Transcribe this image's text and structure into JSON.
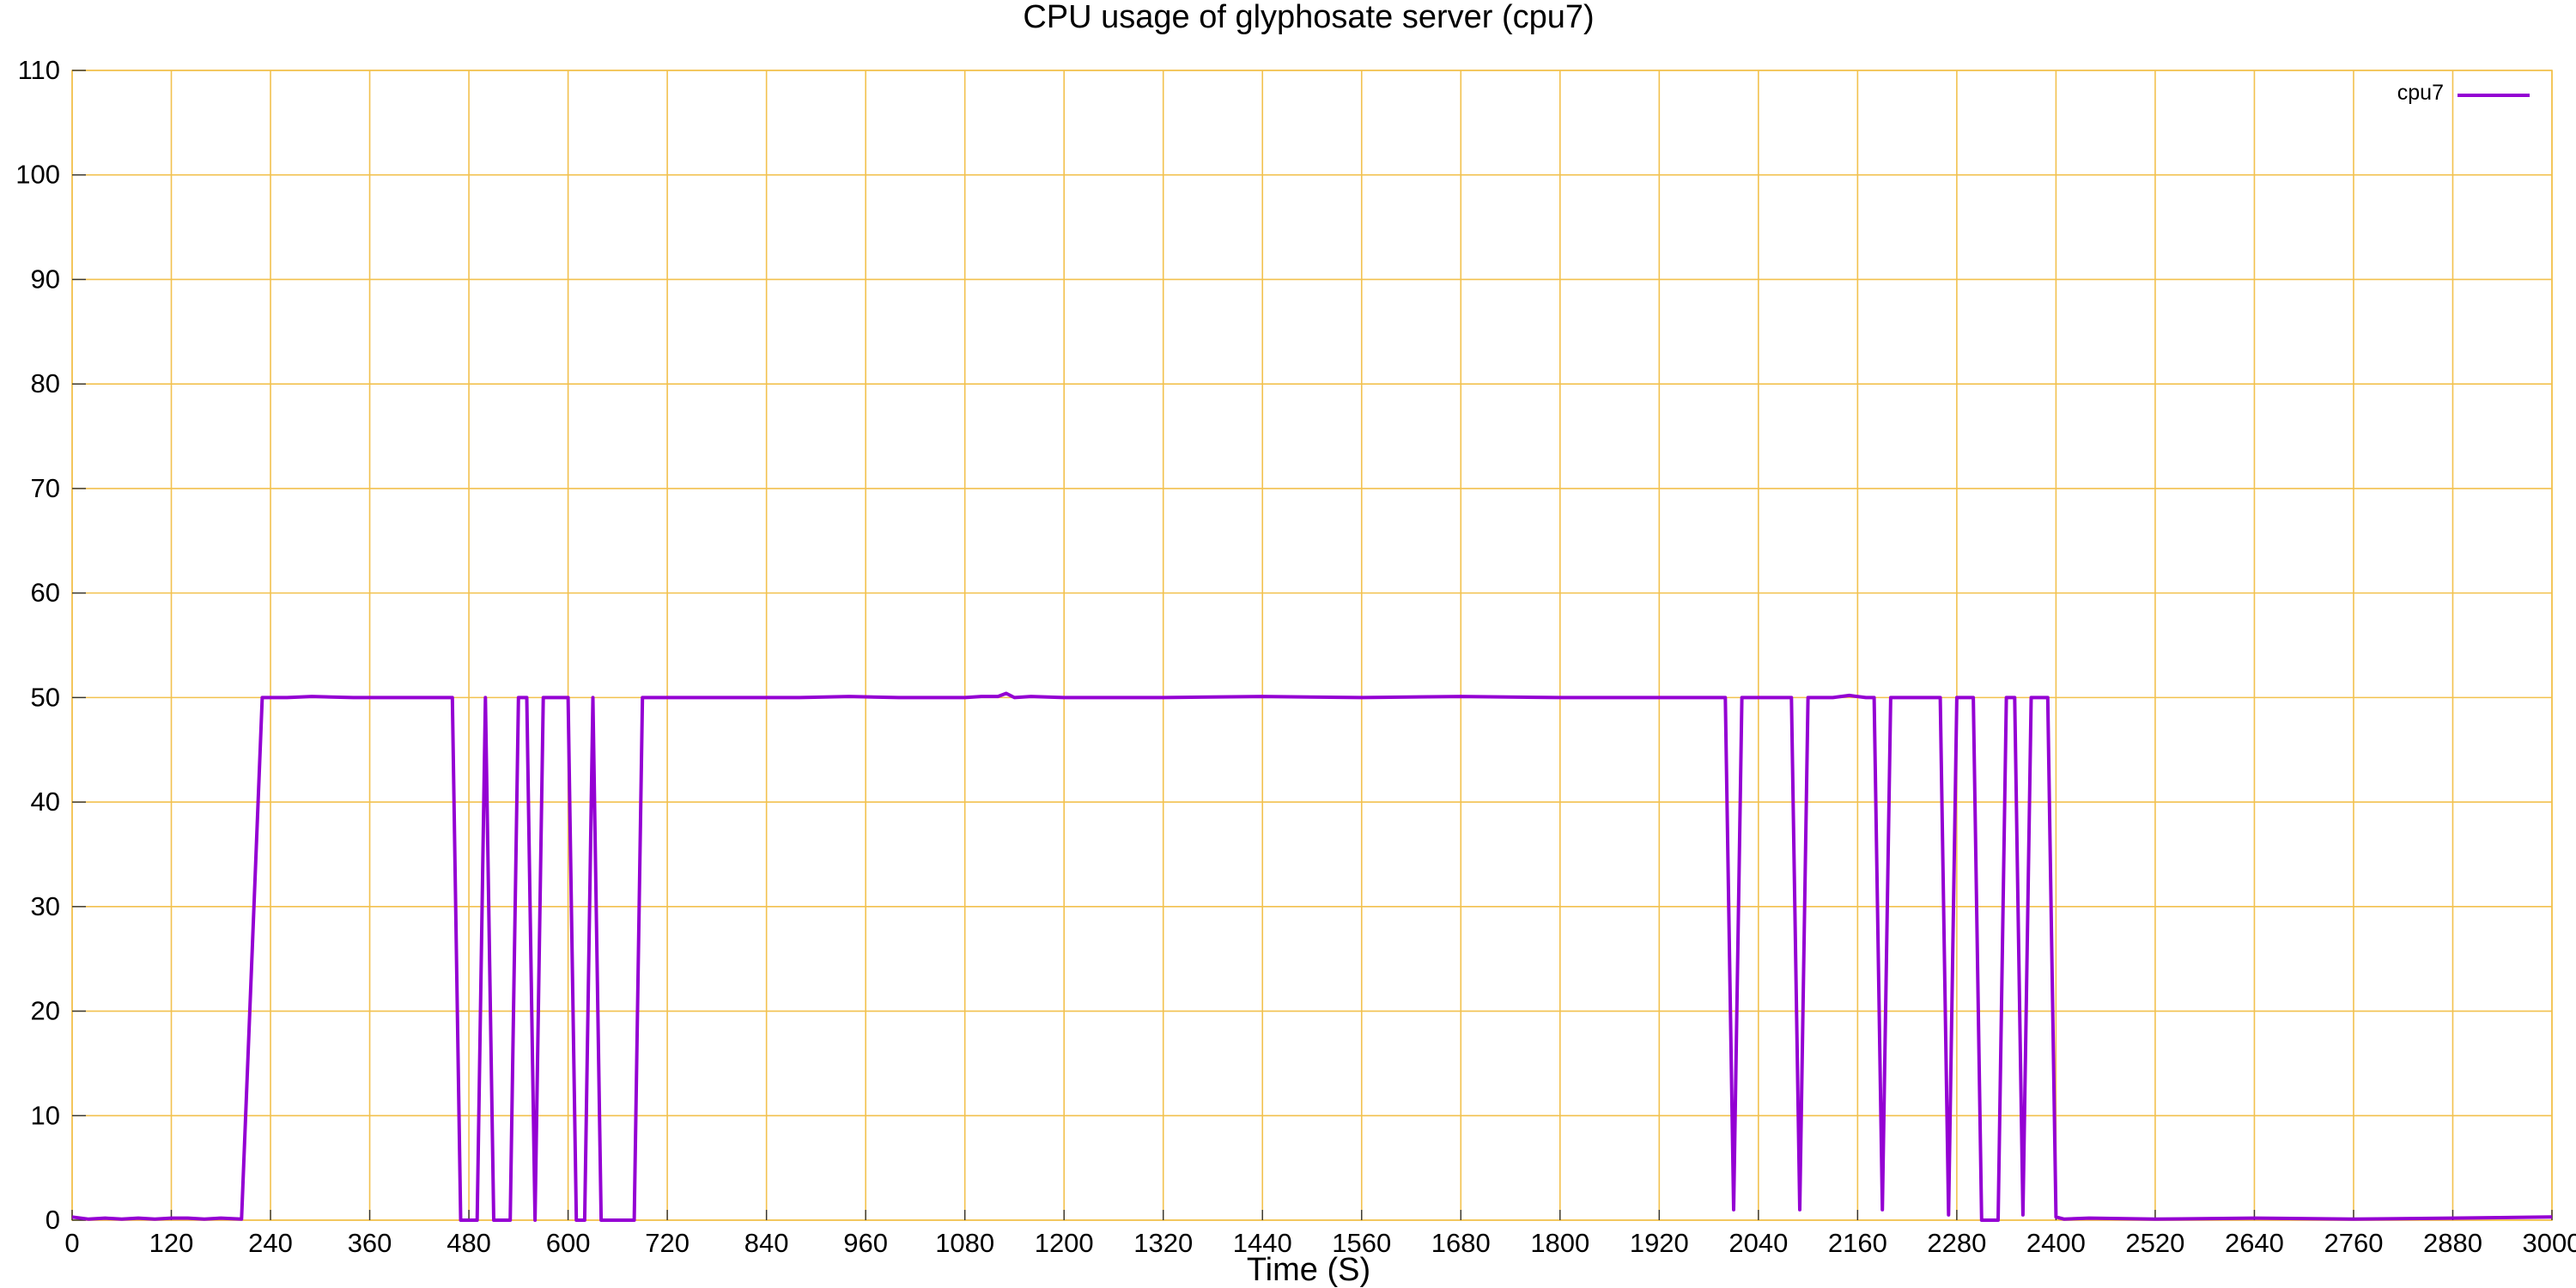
{
  "chart_data": {
    "type": "line",
    "title": "CPU usage of glyphosate server (cpu7)",
    "xlabel": "Time (S)",
    "ylabel": "",
    "xlim": [
      0,
      3000
    ],
    "ylim": [
      0,
      110
    ],
    "xticks": [
      0,
      120,
      240,
      360,
      480,
      600,
      720,
      840,
      960,
      1080,
      1200,
      1320,
      1440,
      1560,
      1680,
      1800,
      1920,
      2040,
      2160,
      2280,
      2400,
      2520,
      2640,
      2760,
      2880,
      3000
    ],
    "yticks": [
      0,
      10,
      20,
      30,
      40,
      50,
      60,
      70,
      80,
      90,
      100,
      110
    ],
    "grid": true,
    "legend_position": "top-right",
    "colors": {
      "series": "#9400d3",
      "grid": "#f2c14e"
    },
    "series": [
      {
        "name": "cpu7",
        "x": [
          0,
          20,
          40,
          60,
          80,
          100,
          120,
          140,
          160,
          180,
          205,
          230,
          260,
          290,
          340,
          400,
          460,
          470,
          480,
          490,
          500,
          510,
          520,
          530,
          540,
          550,
          560,
          570,
          580,
          600,
          610,
          620,
          630,
          640,
          650,
          660,
          670,
          680,
          690,
          700,
          760,
          880,
          940,
          1000,
          1080,
          1100,
          1120,
          1130,
          1140,
          1160,
          1200,
          1320,
          1440,
          1560,
          1680,
          1800,
          1920,
          1990,
          2000,
          2010,
          2020,
          2030,
          2040,
          2050,
          2080,
          2090,
          2100,
          2110,
          2130,
          2150,
          2170,
          2180,
          2190,
          2200,
          2210,
          2250,
          2260,
          2270,
          2280,
          2290,
          2300,
          2310,
          2320,
          2330,
          2340,
          2350,
          2360,
          2370,
          2380,
          2390,
          2400,
          2410,
          2440,
          2520,
          2640,
          2760,
          2880,
          3000
        ],
        "values": [
          0.3,
          0.1,
          0.2,
          0.1,
          0.2,
          0.1,
          0.2,
          0.2,
          0.1,
          0.2,
          0.1,
          50,
          50,
          50.1,
          50,
          50,
          50,
          0,
          0,
          0,
          50,
          0,
          0,
          0,
          50,
          50,
          0,
          50,
          50,
          50,
          0,
          0,
          50,
          0,
          0,
          0,
          0,
          0,
          50,
          50,
          50,
          50,
          50.1,
          50,
          50,
          50.1,
          50.1,
          50.4,
          50,
          50.1,
          50,
          50,
          50.1,
          50,
          50.1,
          50,
          50,
          50,
          50,
          1,
          50,
          50,
          50,
          50,
          50,
          1,
          50,
          50,
          50,
          50.2,
          50,
          50,
          1,
          50,
          50,
          50,
          50,
          0.5,
          50,
          50,
          50,
          0,
          0,
          0,
          50,
          50,
          0.5,
          50,
          50,
          50,
          0.3,
          0.1,
          0.2,
          0.1,
          0.2,
          0.1,
          0.2,
          0.3
        ]
      }
    ]
  }
}
